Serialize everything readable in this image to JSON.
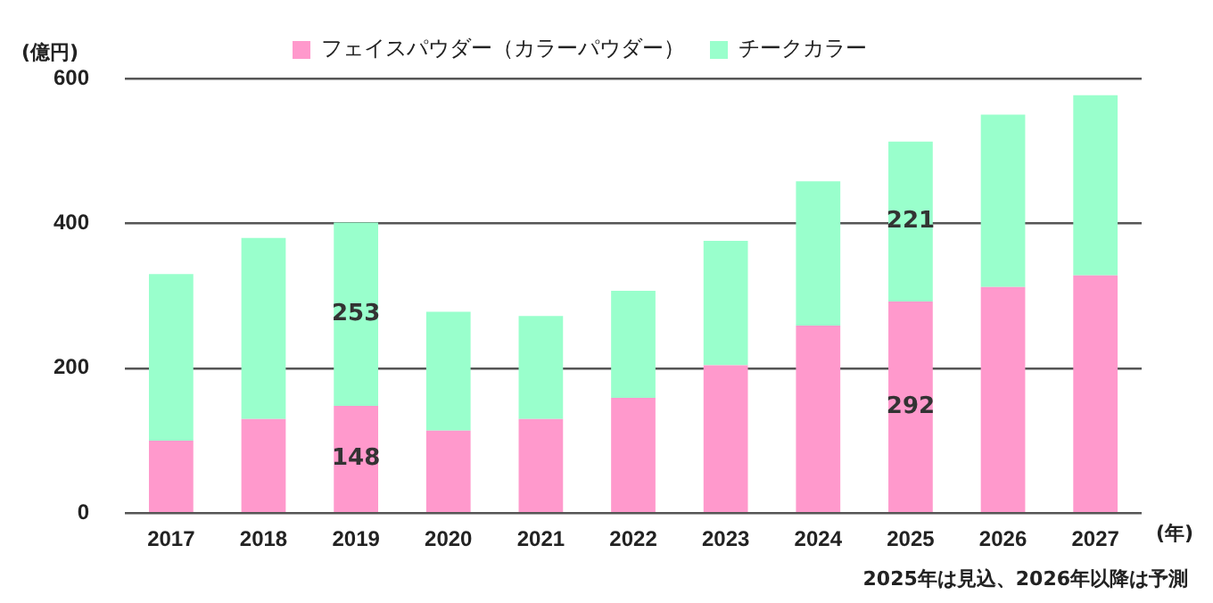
{
  "chart_data": {
    "type": "bar",
    "stacked": true,
    "ylabel": "(億円)",
    "xlabel": "(年)",
    "categories": [
      "2017",
      "2018",
      "2019",
      "2020",
      "2021",
      "2022",
      "2023",
      "2024",
      "2025",
      "2026",
      "2027"
    ],
    "series": [
      {
        "name": "フェイスパウダー（カラーパウダー）",
        "color": "#ff99cc",
        "values": [
          100,
          130,
          148,
          114,
          130,
          159,
          204,
          259,
          292,
          312,
          328
        ],
        "value_labels": [
          null,
          null,
          "148",
          null,
          null,
          null,
          null,
          null,
          "292",
          null,
          null
        ]
      },
      {
        "name": "チークカラー",
        "color": "#99ffcc",
        "values": [
          230,
          250,
          253,
          164,
          142,
          148,
          172,
          199,
          221,
          238,
          249
        ],
        "value_labels": [
          null,
          null,
          "253",
          null,
          null,
          null,
          null,
          null,
          "221",
          null,
          null
        ]
      }
    ],
    "ylim": [
      0,
      600
    ],
    "yticks": [
      0,
      200,
      400,
      600
    ],
    "grid": "y",
    "legend": "top left",
    "annotations": [
      "2025年は見込、2026年以降は予測"
    ]
  }
}
